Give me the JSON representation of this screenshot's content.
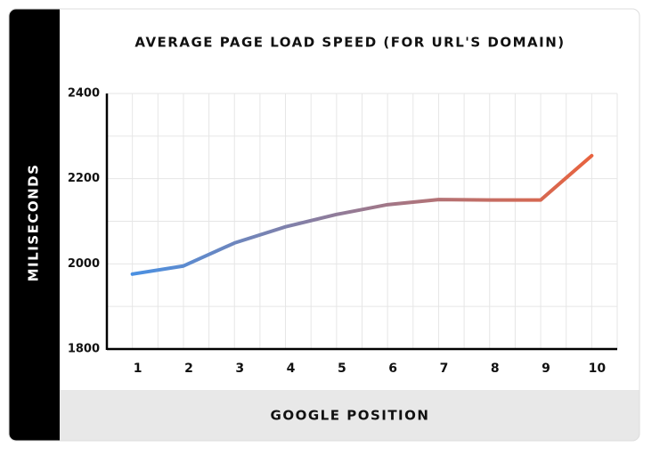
{
  "chart_data": {
    "type": "line",
    "title": "AVERAGE PAGE LOAD SPEED (FOR URL'S DOMAIN)",
    "x_label": "GOOGLE POSITION",
    "y_label": "MILISECONDS",
    "categories": [
      "1",
      "2",
      "3",
      "4",
      "5",
      "6",
      "7",
      "8",
      "9",
      "10"
    ],
    "series": [
      {
        "values": [
          1976,
          1995,
          2049,
          2087,
          2116,
          2139,
          2151,
          2150,
          2150,
          2254
        ],
        "color": [
          "#4a90e2",
          "#e8633f"
        ]
      }
    ],
    "ylim": [
      1800,
      2400
    ],
    "yticks": [
      1800,
      2000,
      2200,
      2400
    ],
    "grid": true
  }
}
